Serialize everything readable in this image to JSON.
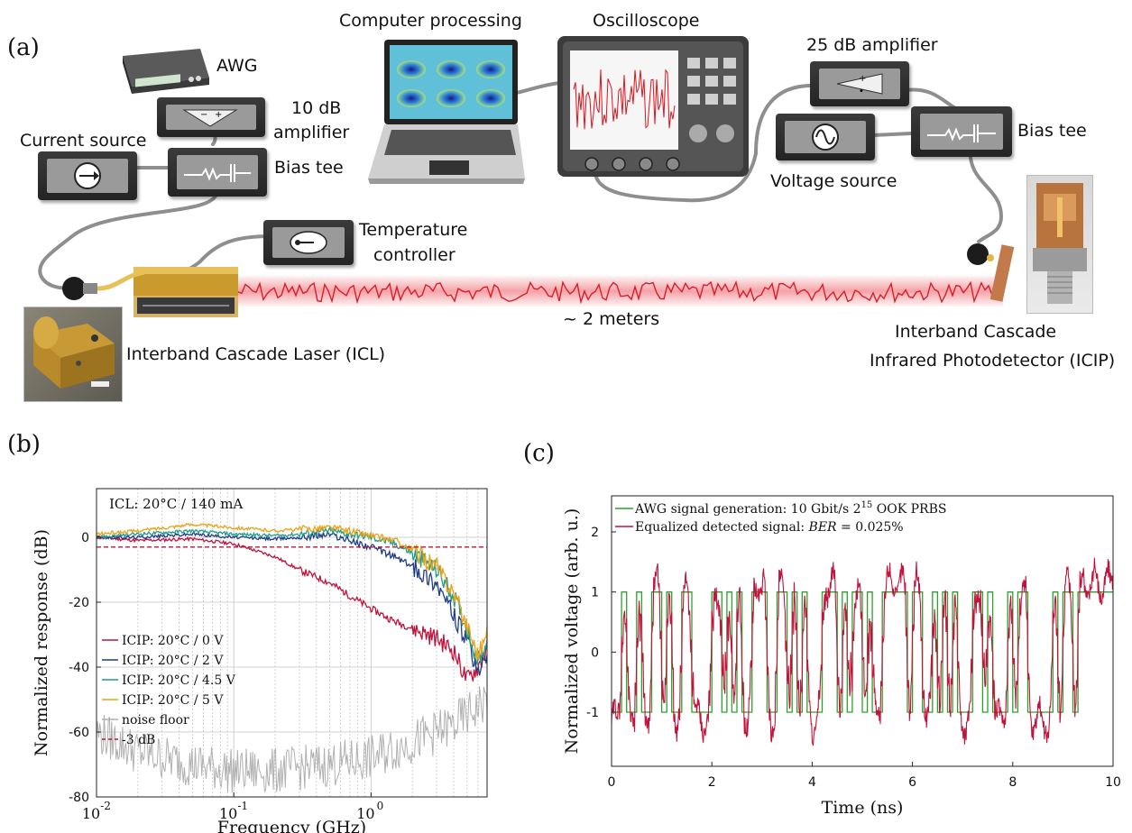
{
  "panel_a": {
    "letter": "(a)",
    "labels": {
      "computer": "Computer processing",
      "oscilloscope": "Oscilloscope",
      "awg": "AWG",
      "amp10_line1": "10 dB",
      "amp10_line2": "amplifier",
      "current_source": "Current source",
      "bias_tee_left": "Bias tee",
      "temp_line1": "Temperature",
      "temp_line2": "controller",
      "amp25": "25 dB amplifier",
      "bias_tee_right": "Bias tee",
      "voltage_source": "Voltage source",
      "distance": "~ 2 meters",
      "icl": "Interband Cascade Laser (ICL)",
      "icip_line1": "Interband Cascade",
      "icip_line2": "Infrared Photodetector (ICIP)"
    },
    "icons": [
      "laptop-icon",
      "oscilloscope-icon",
      "awg-icon",
      "amplifier-icon",
      "current-source-icon",
      "bias-tee-icon",
      "temperature-controller-icon",
      "voltage-source-icon",
      "laser-icon",
      "photodetector-icon"
    ],
    "colors": {
      "beam": "#e8303a",
      "device": "#2a2a2a"
    }
  },
  "chart_data": [
    {
      "panel": "(b)",
      "type": "line",
      "xlabel": "Frequency (GHz)",
      "ylabel": "Normalized response (dB)",
      "xscale": "log",
      "xlim": [
        0.01,
        7
      ],
      "ylim": [
        -80,
        15
      ],
      "xticks": [
        "10",
        "10",
        "10"
      ],
      "xtick_exps": [
        "-2",
        "-1",
        "0"
      ],
      "yticks": [
        "0",
        "-20",
        "-40",
        "-60",
        "-80"
      ],
      "annotation": "ICL: 20°C / 140 mA",
      "grid": true,
      "legend_position": "lower-left",
      "series": [
        {
          "name": "ICIP: 20°C / 0 V",
          "color": "#c0143c",
          "x": [
            0.01,
            0.02,
            0.05,
            0.1,
            0.2,
            0.3,
            0.5,
            0.7,
            1.0,
            1.5,
            2.0,
            3.0,
            4.0,
            5.0,
            6.0,
            7.0
          ],
          "y": [
            0,
            -1,
            -0.5,
            -2,
            -6,
            -10,
            -14,
            -18,
            -22,
            -26,
            -28,
            -31,
            -35,
            -44,
            -40,
            -35
          ]
        },
        {
          "name": "ICIP: 20°C / 2 V",
          "color": "#1f3c88",
          "x": [
            0.01,
            0.02,
            0.05,
            0.1,
            0.2,
            0.3,
            0.5,
            0.7,
            1.0,
            1.5,
            2.0,
            3.0,
            4.0,
            5.0,
            6.0,
            7.0
          ],
          "y": [
            0,
            0,
            1,
            0,
            -0.5,
            0,
            1,
            -1,
            -3,
            -6,
            -9,
            -14,
            -24,
            -32,
            -42,
            -35
          ]
        },
        {
          "name": "ICIP: 20°C / 4.5 V",
          "color": "#1e9c8c",
          "x": [
            0.01,
            0.02,
            0.05,
            0.1,
            0.2,
            0.3,
            0.5,
            0.7,
            1.0,
            1.5,
            2.0,
            3.0,
            4.0,
            5.0,
            6.0,
            7.0
          ],
          "y": [
            0,
            1,
            2,
            1,
            0.5,
            1,
            2,
            1,
            0,
            -2,
            -5,
            -10,
            -18,
            -28,
            -38,
            -32
          ]
        },
        {
          "name": "ICIP: 20°C / 5 V",
          "color": "#e8a317",
          "x": [
            0.01,
            0.02,
            0.05,
            0.1,
            0.2,
            0.3,
            0.5,
            0.7,
            1.0,
            1.5,
            2.0,
            3.0,
            4.0,
            5.0,
            6.0,
            7.0
          ],
          "y": [
            1,
            2,
            4,
            3,
            2,
            2.5,
            3,
            2,
            0.5,
            -1,
            -4,
            -9,
            -17,
            -27,
            -36,
            -30
          ]
        },
        {
          "name": "noise floor",
          "color": "#b0b0b0",
          "x": [
            0.01,
            0.02,
            0.05,
            0.1,
            0.2,
            0.5,
            1.0,
            2.0,
            4.0,
            7.0
          ],
          "y": [
            -60,
            -66,
            -70,
            -72,
            -72,
            -70,
            -68,
            -63,
            -58,
            -50
          ]
        },
        {
          "name": "-3 dB",
          "color": "#c0143c",
          "x": [
            0.01,
            7
          ],
          "y": [
            -3,
            -3
          ]
        }
      ]
    },
    {
      "panel": "(c)",
      "type": "line",
      "xlabel": "Time (ns)",
      "ylabel": "Normalized voltage (arb. u.)",
      "xlim": [
        0,
        10
      ],
      "ylim": [
        -1.9,
        2.6
      ],
      "xticks": [
        "0",
        "2",
        "4",
        "6",
        "8",
        "10"
      ],
      "yticks": [
        "2",
        "1",
        "0",
        "-1"
      ],
      "grid": false,
      "legend_position": "top-left",
      "series": [
        {
          "name": "AWG signal generation: 10 Gbit/s 2^15 OOK PRBS",
          "legend_main": "AWG signal generation: 10 Gbit/s 2",
          "legend_exp": "15",
          "legend_tail": " OOK PRBS",
          "color": "#2ca02c",
          "bits": [
            0,
            0,
            1,
            0,
            0,
            1,
            0,
            0,
            1,
            1,
            0,
            1,
            0,
            0,
            1,
            1,
            0,
            0,
            0,
            0,
            1,
            1,
            0,
            1,
            0,
            1,
            0,
            0,
            1,
            1,
            1,
            0,
            0,
            1,
            1,
            0,
            1,
            0,
            1,
            0,
            0,
            0,
            1,
            1,
            1,
            0,
            1,
            0,
            1,
            1,
            0,
            1,
            0,
            0,
            1,
            1,
            1,
            1,
            1,
            0,
            1,
            1,
            0,
            0,
            1,
            0,
            1,
            0,
            1,
            0,
            0,
            0,
            1,
            1,
            0,
            1,
            0,
            0,
            0,
            1,
            0,
            1,
            1,
            0,
            0,
            0,
            0,
            0,
            1,
            0,
            1,
            1,
            0,
            1,
            1,
            1,
            1,
            1,
            1,
            1
          ]
        },
        {
          "name": "Equalized detected signal: BER = 0.025%",
          "legend_main": "Equalized detected signal: ",
          "legend_italic": "BER",
          "legend_tail": " = 0.025%",
          "color": "#c0143c"
        }
      ]
    }
  ]
}
